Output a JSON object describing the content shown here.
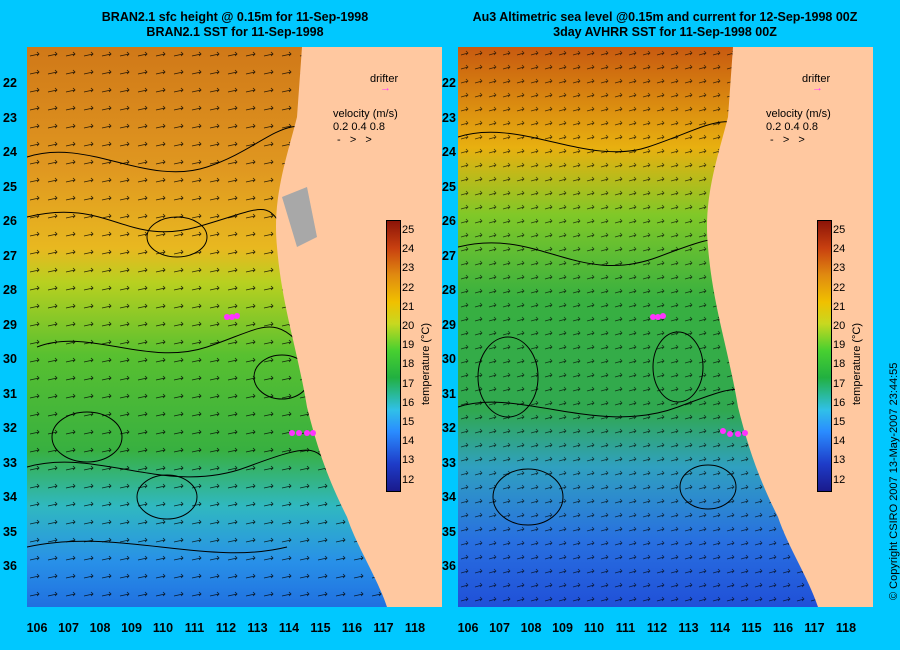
{
  "left_panel": {
    "title_line1": "BRAN2.1 sfc height @ 0.15m for 11-Sep-1998",
    "title_line2": "BRAN2.1 SST for 11-Sep-1998"
  },
  "right_panel": {
    "title_line1": "Au3 Altimetric sea level  @0.15m and current for 12-Sep-1998 00Z",
    "title_line2": "3day AVHRR SST for 11-Sep-1998 00Z"
  },
  "latitudes": [
    "22",
    "23",
    "24",
    "25",
    "26",
    "27",
    "28",
    "29",
    "30",
    "31",
    "32",
    "33",
    "34",
    "35",
    "36"
  ],
  "longitudes": [
    "106",
    "107",
    "108",
    "109",
    "110",
    "111",
    "112",
    "113",
    "114",
    "115",
    "116",
    "117",
    "118"
  ],
  "legend": {
    "drifter_label": "drifter",
    "velocity_label": "velocity (m/s)",
    "velocity_values": "0.2  0.4  0.8"
  },
  "colorbar": {
    "ticks": [
      "25",
      "24",
      "23",
      "22",
      "21",
      "20",
      "19",
      "18",
      "17",
      "16",
      "15",
      "14",
      "13",
      "12"
    ],
    "label": "temperature (°C)"
  },
  "copyright": "© Copyright CSIRO 2007   13-May-2007 23:44:55",
  "colors": {
    "background": "#00c8ff",
    "land": "#ffc8a0",
    "drifter": "#ff33ff"
  }
}
